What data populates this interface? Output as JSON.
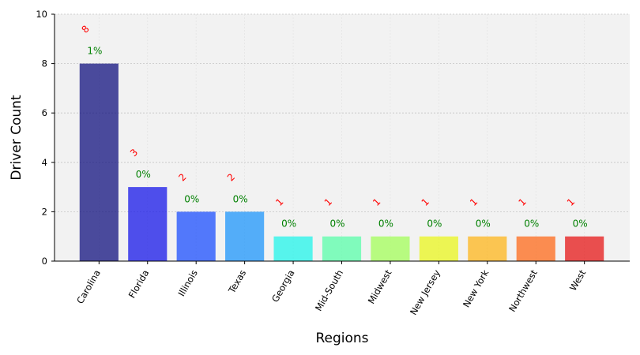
{
  "chart_data": {
    "type": "bar",
    "xlabel": "Regions",
    "ylabel": "Driver Count",
    "ylim": [
      0,
      10
    ],
    "yticks": [
      0,
      2,
      4,
      6,
      8,
      10
    ],
    "grid": true,
    "categories": [
      "Carolina",
      "Florida",
      "Illinois",
      "Texas",
      "Georgia",
      "Mid-South",
      "Midwest",
      "New Jersey",
      "New York",
      "Northwest",
      "West"
    ],
    "values": [
      8,
      3,
      2,
      2,
      1,
      1,
      1,
      1,
      1,
      1,
      1
    ],
    "count_labels": [
      "8",
      "3",
      "2",
      "2",
      "1",
      "1",
      "1",
      "1",
      "1",
      "1",
      "1"
    ],
    "percent_labels": [
      "1%",
      "0%",
      "0%",
      "0%",
      "0%",
      "0%",
      "0%",
      "0%",
      "0%",
      "0%",
      "0%"
    ],
    "colors": [
      "#12127f",
      "#1717e8",
      "#1c4ffe",
      "#1e96fb",
      "#22f4ea",
      "#5afeaa",
      "#a3fe5a",
      "#e9f61d",
      "#fdb51b",
      "#fe6a1a",
      "#e61717"
    ],
    "count_label_color": "#ff0000",
    "percent_label_color": "#008000",
    "plot_background": "#f2f2f2"
  }
}
